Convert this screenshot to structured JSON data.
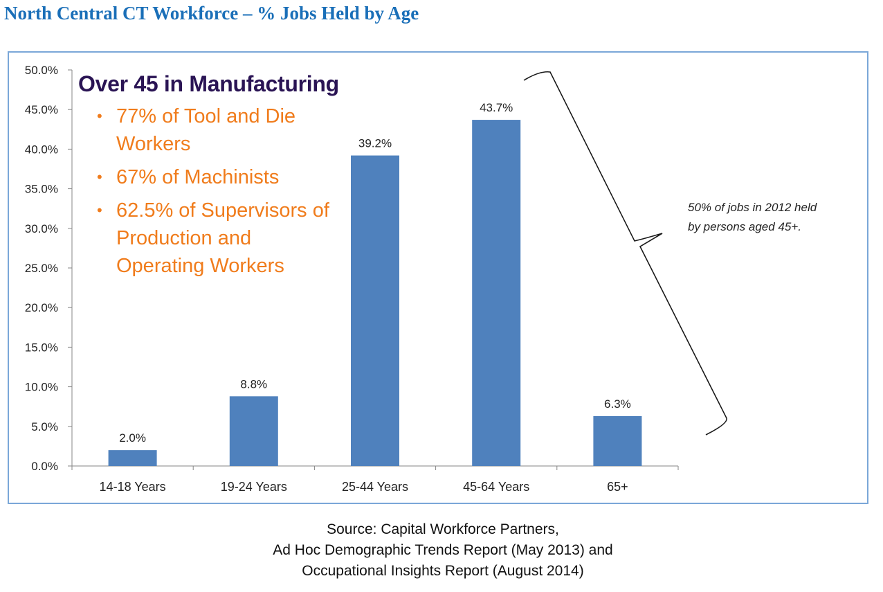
{
  "title": "North Central CT Workforce – % Jobs Held by Age",
  "callout": {
    "title": "Over 45 in Manufacturing",
    "items": [
      "77% of Tool and Die Workers",
      "67% of Machinists",
      "62.5% of Supervisors of Production and Operating Workers"
    ]
  },
  "brace_note": {
    "line1": "50% of jobs in 2012 held",
    "line2": "by persons aged 45+."
  },
  "source": {
    "line1": "Source: Capital Workforce Partners,",
    "line2": "Ad Hoc Demographic Trends Report (May 2013) and",
    "line3": "Occupational Insights Report (August 2014)"
  },
  "chart_data": {
    "type": "bar",
    "categories": [
      "14-18 Years",
      "19-24 Years",
      "25-44 Years",
      "45-64 Years",
      "65+"
    ],
    "values": [
      2.0,
      8.8,
      39.2,
      43.7,
      6.3
    ],
    "data_labels": [
      "2.0%",
      "8.8%",
      "39.2%",
      "43.7%",
      "6.3%"
    ],
    "ylim": [
      0,
      50
    ],
    "yticks": [
      "0.0%",
      "5.0%",
      "10.0%",
      "15.0%",
      "20.0%",
      "25.0%",
      "30.0%",
      "35.0%",
      "40.0%",
      "45.0%",
      "50.0%"
    ],
    "grid": false,
    "bar_color": "#4f81bd",
    "title": "",
    "xlabel": "",
    "ylabel": ""
  }
}
